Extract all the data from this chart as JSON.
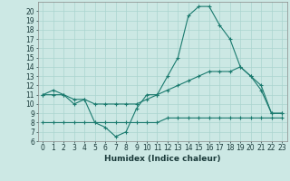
{
  "title": "",
  "xlabel": "Humidex (Indice chaleur)",
  "x": [
    0,
    1,
    2,
    3,
    4,
    5,
    6,
    7,
    8,
    9,
    10,
    11,
    12,
    13,
    14,
    15,
    16,
    17,
    18,
    19,
    20,
    21,
    22,
    23
  ],
  "line1": [
    11,
    11.5,
    11,
    10,
    10.5,
    8,
    7.5,
    6.5,
    7,
    9.5,
    11,
    11,
    13,
    15,
    19.5,
    20.5,
    20.5,
    18.5,
    17,
    14,
    13,
    11.5,
    9,
    9
  ],
  "line2": [
    11,
    11,
    11,
    10.5,
    10.5,
    10,
    10,
    10,
    10,
    10,
    10.5,
    11,
    11.5,
    12,
    12.5,
    13,
    13.5,
    13.5,
    13.5,
    14,
    13,
    12,
    9,
    9
  ],
  "line3": [
    8,
    8,
    8,
    8,
    8,
    8,
    8,
    8,
    8,
    8,
    8,
    8,
    8.5,
    8.5,
    8.5,
    8.5,
    8.5,
    8.5,
    8.5,
    8.5,
    8.5,
    8.5,
    8.5,
    8.5
  ],
  "color": "#1a7a6e",
  "bg_color": "#cce8e4",
  "grid_color": "#aad4cf",
  "ylim": [
    6,
    21
  ],
  "yticks": [
    6,
    7,
    8,
    9,
    10,
    11,
    12,
    13,
    14,
    15,
    16,
    17,
    18,
    19,
    20
  ],
  "xticks": [
    0,
    1,
    2,
    3,
    4,
    5,
    6,
    7,
    8,
    9,
    10,
    11,
    12,
    13,
    14,
    15,
    16,
    17,
    18,
    19,
    20,
    21,
    22,
    23
  ],
  "marker": "+",
  "linewidth": 0.8,
  "markersize": 3,
  "tick_fontsize": 5.5,
  "xlabel_fontsize": 6.5
}
